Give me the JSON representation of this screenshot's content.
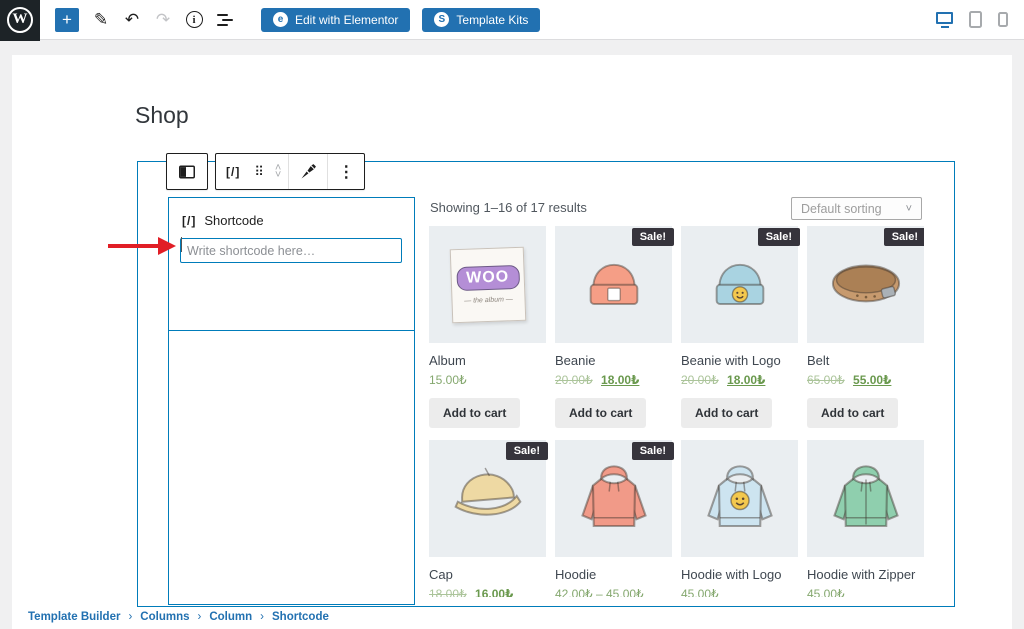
{
  "editor_toolbar": {
    "edit_with_elementor_label": "Edit with Elementor",
    "template_kits_label": "Template Kits"
  },
  "icons": {
    "add_block": "+",
    "edit_pencil": "✎",
    "undo": "↶",
    "redo": "↷",
    "info": "i",
    "shortcode": "[/]",
    "drag_handle": "⠿",
    "chevron_up": "˄",
    "chevron_down": "˅",
    "more_options": "⋮",
    "elementor_badge": "e",
    "template_kits_badge": "S",
    "dropdown_chevron": "˅",
    "breadcrumb_separator": "›"
  },
  "page": {
    "title": "Shop"
  },
  "shortcode_block": {
    "label": "Shortcode",
    "placeholder": "Write shortcode here…"
  },
  "shop": {
    "results_text": "Showing 1–16 of 17 results",
    "sorting_selected": "Default sorting",
    "sale_badge": "Sale!",
    "add_to_cart_label": "Add to cart",
    "products": [
      {
        "name": "Album",
        "sale": false,
        "prices": {
          "regular": "15.00₺"
        },
        "image": {
          "kind": "album",
          "color": "#faf8f4"
        }
      },
      {
        "name": "Beanie",
        "sale": true,
        "prices": {
          "old": "20.00₺",
          "sale_price": "18.00₺"
        },
        "image": {
          "kind": "beanie",
          "color": "#f59e86",
          "logo": false
        }
      },
      {
        "name": "Beanie with Logo",
        "sale": true,
        "prices": {
          "old": "20.00₺",
          "sale_price": "18.00₺"
        },
        "image": {
          "kind": "beanie",
          "color": "#a9d3e1",
          "logo": true
        }
      },
      {
        "name": "Belt",
        "sale": true,
        "prices": {
          "old": "65.00₺",
          "sale_price": "55.00₺"
        },
        "image": {
          "kind": "belt",
          "color": "#c79a6e"
        }
      },
      {
        "name": "Cap",
        "sale": true,
        "prices": {
          "old": "18.00₺",
          "sale_price": "16.00₺"
        },
        "image": {
          "kind": "cap",
          "color": "#eed9a3"
        }
      },
      {
        "name": "Hoodie",
        "sale": true,
        "prices": {
          "regular": "42.00₺ – 45.00₺"
        },
        "image": {
          "kind": "hoodie",
          "color": "#f19a88",
          "logo": false,
          "zipper": false
        }
      },
      {
        "name": "Hoodie with Logo",
        "sale": false,
        "prices": {
          "regular": "45.00₺"
        },
        "image": {
          "kind": "hoodie",
          "color": "#cde4f0",
          "logo": true,
          "zipper": false
        }
      },
      {
        "name": "Hoodie with Zipper",
        "sale": false,
        "prices": {
          "regular": "45.00₺"
        },
        "image": {
          "kind": "hoodie",
          "color": "#8fcfae",
          "logo": false,
          "zipper": true
        }
      }
    ]
  },
  "breadcrumb": {
    "items": [
      "Template Builder",
      "Columns",
      "Column",
      "Shortcode"
    ]
  },
  "colors": {
    "selection_blue": "#007cba",
    "admin_blue": "#2271b1",
    "price_green": "#85a86f",
    "price_green_muted": "#abc49a",
    "sale_price_green": "#6a994e",
    "sale_badge_bg": "#36343c",
    "arrow_red": "#e11e26",
    "thumb_bg": "#eaeef1",
    "wp_logo_bg": "#1d2327"
  }
}
